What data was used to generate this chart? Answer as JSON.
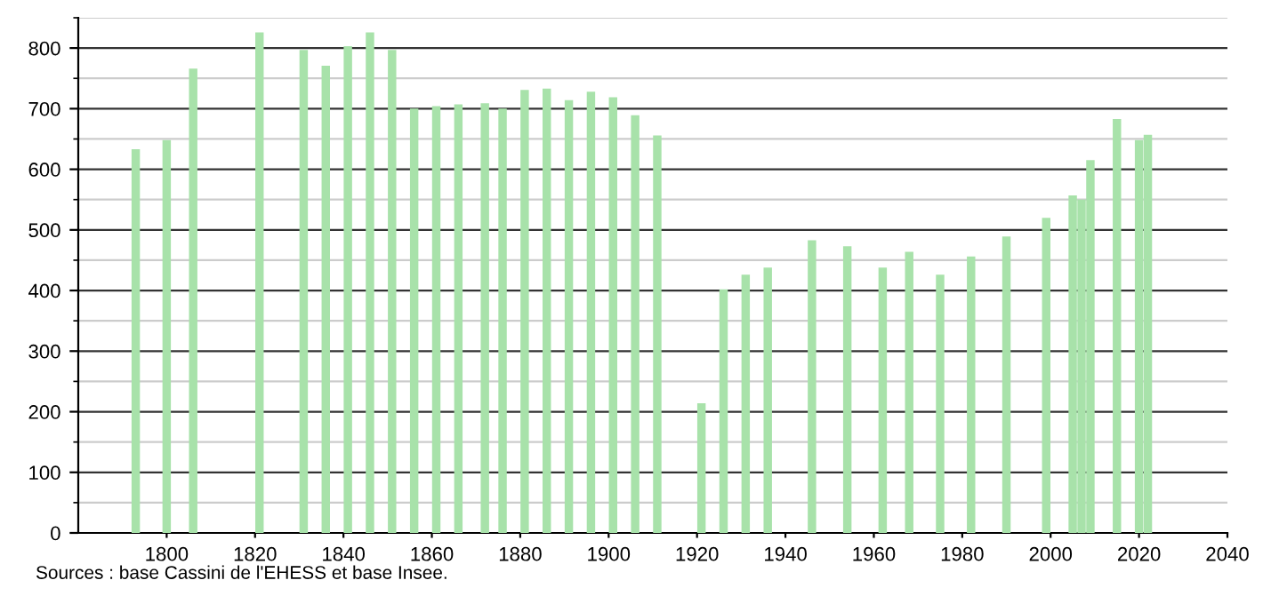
{
  "chart_data": {
    "type": "bar",
    "x": [
      1793,
      1800,
      1806,
      1821,
      1831,
      1836,
      1841,
      1846,
      1851,
      1856,
      1861,
      1866,
      1872,
      1876,
      1881,
      1886,
      1891,
      1896,
      1901,
      1906,
      1911,
      1921,
      1926,
      1931,
      1936,
      1946,
      1954,
      1962,
      1968,
      1975,
      1982,
      1990,
      1999,
      2005,
      2007,
      2009,
      2015,
      2020,
      2022
    ],
    "values": [
      633,
      648,
      766,
      826,
      797,
      771,
      803,
      826,
      797,
      700,
      704,
      707,
      709,
      700,
      731,
      733,
      714,
      728,
      719,
      689,
      656,
      214,
      402,
      426,
      438,
      483,
      473,
      438,
      464,
      426,
      456,
      489,
      520,
      557,
      550,
      615,
      683,
      648,
      657
    ],
    "color": "#a8e2aa",
    "xlim": [
      1780,
      2040
    ],
    "xticks": [
      1800,
      1820,
      1840,
      1860,
      1880,
      1900,
      1920,
      1940,
      1960,
      1980,
      2000,
      2020,
      2040
    ],
    "ylim": [
      0,
      850
    ],
    "yticks": [
      0,
      100,
      200,
      300,
      400,
      500,
      600,
      700,
      800
    ],
    "grid": "y",
    "annotations": [
      "Sources : base Cassini de l'EHESS et base Insee."
    ]
  }
}
